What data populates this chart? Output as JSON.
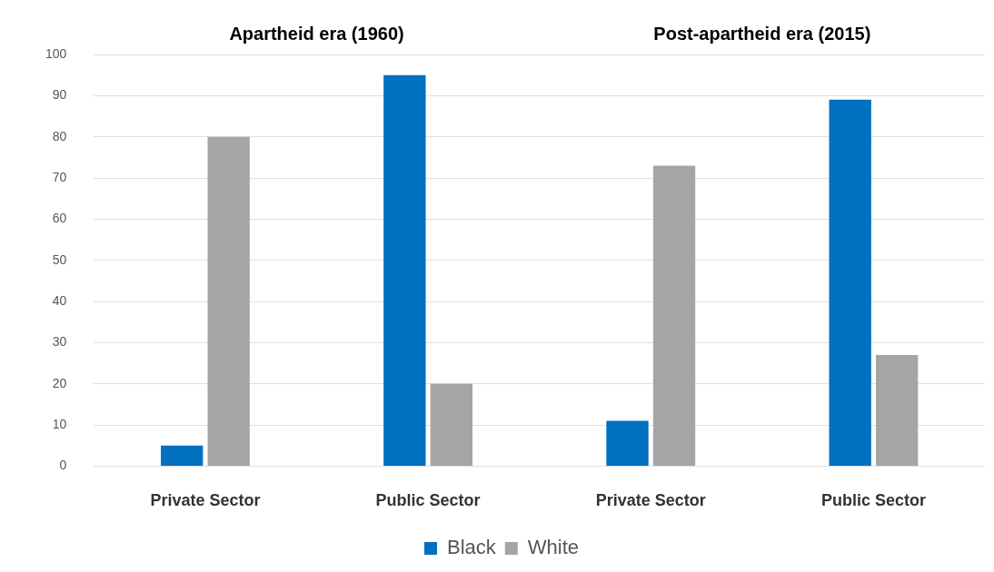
{
  "chart_data": {
    "type": "bar",
    "categories": [
      "Private Sector",
      "Public Sector",
      "Private Sector",
      "Public Sector"
    ],
    "series": [
      {
        "name": "Black",
        "color": "#0070c0",
        "values": [
          5,
          95,
          11,
          89
        ]
      },
      {
        "name": "White",
        "color": "#a5a5a5",
        "values": [
          80,
          20,
          73,
          27
        ]
      }
    ],
    "annotations": [
      "Apartheid era (1960)",
      "Post-apartheid era (2015)"
    ],
    "ylim": [
      0,
      100
    ],
    "yticks": [
      0,
      10,
      20,
      30,
      40,
      50,
      60,
      70,
      80,
      90,
      100
    ],
    "grid": "y",
    "legend": "bottom"
  }
}
